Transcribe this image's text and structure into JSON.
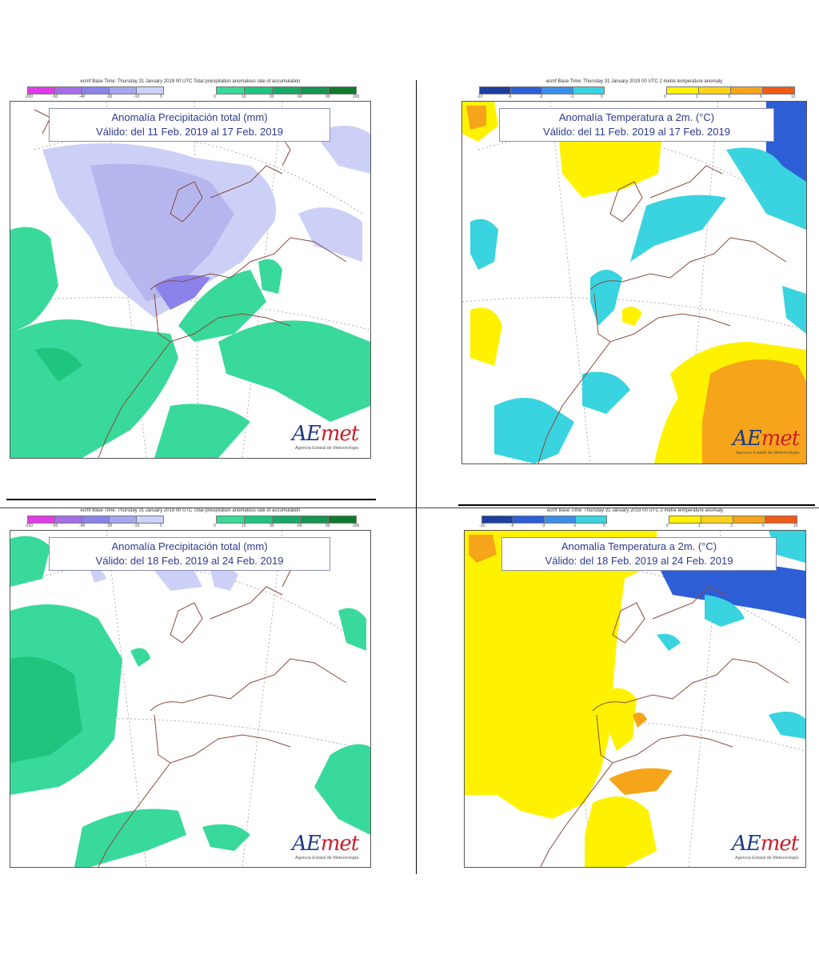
{
  "panels": [
    {
      "id": "precip-week1",
      "header": "ecmf  Base Time: Thursday 31 January 2019 00 UTC Total precipitation anomalous rate of accumulation",
      "legend_neg": {
        "ticks": [
          "-200",
          "-50",
          "-40",
          "-30",
          "-10",
          "0"
        ],
        "colors": [
          "#e13be6",
          "#a56ee6",
          "#8b83ea",
          "#a7a6f0",
          "#cfd2f8"
        ]
      },
      "legend_pos": {
        "ticks": [
          "0",
          "10",
          "30",
          "60",
          "90",
          "200"
        ],
        "colors": [
          "#38d99a",
          "#1fc57f",
          "#17aa66",
          "#149650",
          "#0f7a2d"
        ]
      },
      "title_line1": "Anomalía Precipitación total (mm)",
      "title_line2": "Válido: del 11 Feb. 2019 al 17 Feb. 2019",
      "logo_word_a": "AE",
      "logo_word_b": "met",
      "logo_sub": "Agencia Estatal de Meteorología"
    },
    {
      "id": "temp-week1",
      "header": "ecmf  Base Time: Thursday 31 January 2019 00 UTC 2 metre temperature anomaly",
      "legend_neg": {
        "ticks": [
          "-12",
          "-6",
          "-3",
          "-1",
          "0"
        ],
        "colors": [
          "#1d3f9e",
          "#2e5ed6",
          "#3b8ee6",
          "#3ad3e0"
        ]
      },
      "legend_pos": {
        "ticks": [
          "0",
          "1",
          "3",
          "6",
          "12"
        ],
        "colors": [
          "#fff200",
          "#ffd21a",
          "#f6a41a",
          "#f05a17"
        ]
      },
      "title_line1": "Anomalía Temperatura a 2m. (°C)",
      "title_line2": "Válido: del 11 Feb. 2019 al 17 Feb. 2019",
      "logo_word_a": "AE",
      "logo_word_b": "met",
      "logo_sub": "Agencia Estatal de Meteorología"
    },
    {
      "id": "precip-week2",
      "header": "ecmf  Base Time: Thursday 31 January 2019 00 UTC Total precipitation anomalous rate of accumulation",
      "legend_neg": {
        "ticks": [
          "-200",
          "-50",
          "-40",
          "-30",
          "-10",
          "0"
        ],
        "colors": [
          "#e13be6",
          "#a56ee6",
          "#8b83ea",
          "#a7a6f0",
          "#cfd2f8"
        ]
      },
      "legend_pos": {
        "ticks": [
          "0",
          "10",
          "30",
          "60",
          "90",
          "200"
        ],
        "colors": [
          "#38d99a",
          "#1fc57f",
          "#17aa66",
          "#149650",
          "#0f7a2d"
        ]
      },
      "title_line1": "Anomalía Precipitación total (mm)",
      "title_line2": "Válido: del 18 Feb. 2019 al 24 Feb. 2019",
      "logo_word_a": "AE",
      "logo_word_b": "met",
      "logo_sub": "Agencia Estatal de Meteorología"
    },
    {
      "id": "temp-week2",
      "header": "ecmf  Base Time: Thursday 31 January 2019 00 UTC 2 metre temperature anomaly",
      "legend_neg": {
        "ticks": [
          "-10",
          "-6",
          "-3",
          "-1",
          "0"
        ],
        "colors": [
          "#1d3f9e",
          "#2e5ed6",
          "#3b8ee6",
          "#3ad3e0"
        ]
      },
      "legend_pos": {
        "ticks": [
          "0",
          "1",
          "3",
          "6",
          "10"
        ],
        "colors": [
          "#fff200",
          "#ffd21a",
          "#f6a41a",
          "#f05a17"
        ]
      },
      "title_line1": "Anomalía Temperatura a 2m. (°C)",
      "title_line2": "Válido: del 18 Feb. 2019 al 24 Feb. 2019",
      "logo_word_a": "AE",
      "logo_word_b": "met",
      "logo_sub": "Agencia Estatal de Meteorología"
    }
  ]
}
